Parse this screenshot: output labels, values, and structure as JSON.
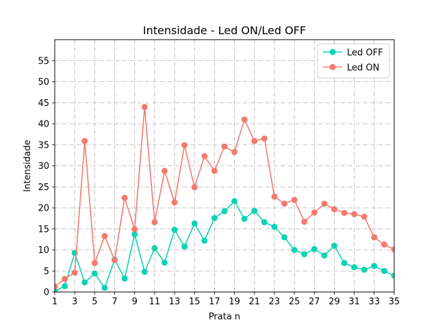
{
  "chart_data": {
    "type": "line",
    "title": "Intensidade - Led ON/Led OFF",
    "xlabel": "Prata n",
    "ylabel": "Intensidade",
    "xlim": [
      1,
      35
    ],
    "ylim": [
      0,
      60
    ],
    "xticks": [
      1,
      3,
      5,
      7,
      9,
      11,
      13,
      15,
      17,
      19,
      21,
      23,
      25,
      27,
      29,
      31,
      33,
      35
    ],
    "yticks": [
      0,
      5,
      10,
      15,
      20,
      25,
      30,
      35,
      40,
      45,
      50,
      55
    ],
    "grid": true,
    "legend_position": "top-right",
    "x": [
      1,
      2,
      3,
      4,
      5,
      6,
      7,
      8,
      9,
      10,
      11,
      12,
      13,
      14,
      15,
      16,
      17,
      18,
      19,
      20,
      21,
      22,
      23,
      24,
      25,
      26,
      27,
      28,
      29,
      30,
      31,
      32,
      33,
      34,
      35
    ],
    "series": [
      {
        "name": "Led OFF",
        "color": "#10d2b4",
        "values": [
          0.2,
          1.4,
          9.3,
          2.3,
          4.4,
          1.0,
          7.7,
          3.2,
          13.7,
          4.8,
          10.4,
          7.0,
          14.8,
          10.8,
          16.3,
          12.2,
          17.6,
          19.2,
          21.6,
          17.4,
          19.3,
          16.6,
          15.5,
          13.0,
          10.0,
          9.0,
          10.2,
          8.7,
          11.0,
          6.9,
          5.9,
          5.3,
          6.2,
          5.0,
          3.9
        ]
      },
      {
        "name": "Led ON",
        "color": "#f47a6e",
        "values": [
          1.3,
          3.1,
          4.6,
          35.9,
          6.9,
          13.3,
          7.6,
          22.4,
          14.9,
          44.0,
          16.6,
          28.8,
          21.3,
          34.9,
          24.9,
          32.3,
          28.8,
          34.6,
          33.3,
          41.0,
          35.9,
          36.5,
          22.7,
          21.0,
          21.9,
          16.7,
          18.9,
          21.0,
          19.7,
          18.8,
          18.5,
          17.9,
          13.0,
          11.3,
          10.1
        ]
      }
    ]
  }
}
